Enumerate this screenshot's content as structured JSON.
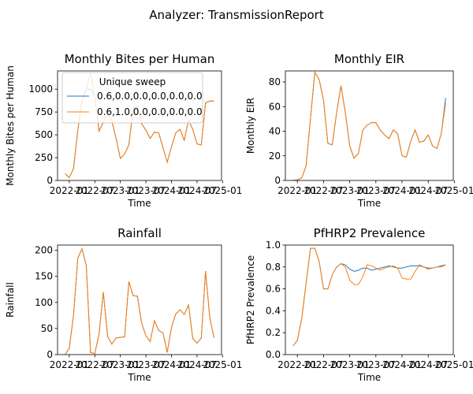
{
  "suptitle": "Analyzer: TransmissionReport",
  "colors": {
    "series1": "#1f77b4",
    "series2": "#ff7f0e",
    "axis": "#000000",
    "legend_border": "#cccccc"
  },
  "legend": {
    "title": "Unique sweep",
    "entries": [
      "0.6,0.0,0.0,0.0,0.0,0.0",
      "0.6,1.0,0.0,0.0,0.0,0.0"
    ],
    "placement": "upper-left of first subplot"
  },
  "x_tick_labels": [
    "2022-01",
    "2022-07",
    "2023-01",
    "2023-07",
    "2024-01",
    "2024-07",
    "2025-01"
  ],
  "chart_data": [
    {
      "type": "line",
      "title": "Monthly Bites per Human",
      "xlabel": "Time",
      "ylabel": "Monthly Bites per Human",
      "ylim": [
        0,
        1200
      ],
      "yticks": [
        0,
        250,
        500,
        750,
        1000
      ],
      "ytick_labels": [
        "0",
        "250",
        "500",
        "750",
        "1000"
      ],
      "x": [
        "2021-12",
        "2022-01",
        "2022-02",
        "2022-03",
        "2022-04",
        "2022-05",
        "2022-06",
        "2022-07",
        "2022-08",
        "2022-09",
        "2022-10",
        "2022-11",
        "2022-12",
        "2023-01",
        "2023-02",
        "2023-03",
        "2023-04",
        "2023-05",
        "2023-06",
        "2023-07",
        "2023-08",
        "2023-09",
        "2023-10",
        "2023-11",
        "2023-12",
        "2024-01",
        "2024-02",
        "2024-03",
        "2024-04",
        "2024-05",
        "2024-06",
        "2024-07",
        "2024-08",
        "2024-09",
        "2024-10",
        "2024-11"
      ],
      "series": [
        {
          "name": "0.6,0.0,0.0,0.0,0.0,0.0",
          "values": [
            75,
            30,
            130,
            550,
            870,
            1000,
            1000,
            920,
            540,
            640,
            760,
            650,
            460,
            240,
            290,
            390,
            790,
            820,
            620,
            550,
            460,
            530,
            520,
            360,
            200,
            370,
            520,
            560,
            440,
            660,
            560,
            400,
            390,
            850,
            870,
            870
          ]
        },
        {
          "name": "0.6,1.0,0.0,0.0,0.0,0.0",
          "values": [
            75,
            30,
            130,
            550,
            870,
            1000,
            1180,
            920,
            540,
            640,
            760,
            650,
            460,
            240,
            290,
            390,
            790,
            820,
            620,
            550,
            460,
            530,
            520,
            360,
            200,
            370,
            520,
            560,
            440,
            660,
            560,
            400,
            390,
            850,
            870,
            870
          ]
        }
      ]
    },
    {
      "type": "line",
      "title": "Monthly EIR",
      "xlabel": "Time",
      "ylabel": "Monthly EIR",
      "ylim": [
        0,
        89
      ],
      "yticks": [
        0,
        20,
        40,
        60,
        80
      ],
      "ytick_labels": [
        "0",
        "20",
        "40",
        "60",
        "80"
      ],
      "x": [
        "2021-12",
        "2022-01",
        "2022-02",
        "2022-03",
        "2022-04",
        "2022-05",
        "2022-06",
        "2022-07",
        "2022-08",
        "2022-09",
        "2022-10",
        "2022-11",
        "2022-12",
        "2023-01",
        "2023-02",
        "2023-03",
        "2023-04",
        "2023-05",
        "2023-06",
        "2023-07",
        "2023-08",
        "2023-09",
        "2023-10",
        "2023-11",
        "2023-12",
        "2024-01",
        "2024-02",
        "2024-03",
        "2024-04",
        "2024-05",
        "2024-06",
        "2024-07",
        "2024-08",
        "2024-09",
        "2024-10",
        "2024-11"
      ],
      "series": [
        {
          "name": "0.6,0.0,0.0,0.0,0.0,0.0",
          "values": [
            0,
            0.5,
            2,
            12,
            50,
            88,
            82,
            65,
            30,
            29,
            55,
            77,
            55,
            28,
            18,
            22,
            41,
            45,
            47,
            47,
            41,
            37,
            34,
            41,
            38,
            20,
            19,
            32,
            41,
            31,
            32,
            37,
            28,
            26,
            38,
            67
          ]
        },
        {
          "name": "0.6,1.0,0.0,0.0,0.0,0.0",
          "values": [
            0,
            0.5,
            2,
            12,
            50,
            88,
            82,
            65,
            30,
            29,
            55,
            77,
            55,
            28,
            18,
            22,
            41,
            45,
            47,
            47,
            41,
            37,
            34,
            41,
            38,
            20,
            19,
            32,
            41,
            31,
            32,
            37,
            28,
            26,
            38,
            63
          ]
        }
      ]
    },
    {
      "type": "line",
      "title": "Rainfall",
      "xlabel": "Time",
      "ylabel": "Rainfall",
      "ylim": [
        0,
        210
      ],
      "yticks": [
        0,
        50,
        100,
        150,
        200
      ],
      "ytick_labels": [
        "0",
        "50",
        "100",
        "150",
        "200"
      ],
      "x": [
        "2021-12",
        "2022-01",
        "2022-02",
        "2022-03",
        "2022-04",
        "2022-05",
        "2022-06",
        "2022-07",
        "2022-08",
        "2022-09",
        "2022-10",
        "2022-11",
        "2022-12",
        "2023-01",
        "2023-02",
        "2023-03",
        "2023-04",
        "2023-05",
        "2023-06",
        "2023-07",
        "2023-08",
        "2023-09",
        "2023-10",
        "2023-11",
        "2023-12",
        "2024-01",
        "2024-02",
        "2024-03",
        "2024-04",
        "2024-05",
        "2024-06",
        "2024-07",
        "2024-08",
        "2024-09",
        "2024-10",
        "2024-11"
      ],
      "series": [
        {
          "name": "0.6,0.0,0.0,0.0,0.0,0.0",
          "values": [
            0,
            12,
            75,
            185,
            203,
            170,
            4,
            2,
            40,
            120,
            35,
            20,
            32,
            33,
            34,
            140,
            113,
            112,
            60,
            36,
            25,
            65,
            46,
            42,
            4,
            52,
            78,
            86,
            77,
            95,
            31,
            22,
            32,
            160,
            70,
            32
          ]
        },
        {
          "name": "0.6,1.0,0.0,0.0,0.0,0.0",
          "values": [
            0,
            12,
            75,
            185,
            203,
            170,
            4,
            2,
            40,
            120,
            35,
            20,
            32,
            33,
            34,
            140,
            113,
            112,
            60,
            36,
            25,
            65,
            46,
            42,
            4,
            52,
            78,
            86,
            77,
            95,
            31,
            22,
            32,
            160,
            70,
            32
          ]
        }
      ]
    },
    {
      "type": "line",
      "title": "PfHRP2 Prevalence",
      "xlabel": "Time",
      "ylabel": "PfHRP2 Prevalence",
      "ylim": [
        0,
        1.0
      ],
      "yticks": [
        0,
        0.2,
        0.4,
        0.6,
        0.8,
        1.0
      ],
      "ytick_labels": [
        "0.0",
        "0.2",
        "0.4",
        "0.6",
        "0.8",
        "1.0"
      ],
      "x": [
        "2021-12",
        "2022-01",
        "2022-02",
        "2022-03",
        "2022-04",
        "2022-05",
        "2022-06",
        "2022-07",
        "2022-08",
        "2022-09",
        "2022-10",
        "2022-11",
        "2022-12",
        "2023-01",
        "2023-02",
        "2023-03",
        "2023-04",
        "2023-05",
        "2023-06",
        "2023-07",
        "2023-08",
        "2023-09",
        "2023-10",
        "2023-11",
        "2023-12",
        "2024-01",
        "2024-02",
        "2024-03",
        "2024-04",
        "2024-05",
        "2024-06",
        "2024-07",
        "2024-08",
        "2024-09",
        "2024-10",
        "2024-11"
      ],
      "series": [
        {
          "name": "0.6,0.0,0.0,0.0,0.0,0.0",
          "values": [
            0.08,
            0.13,
            0.33,
            0.65,
            0.97,
            0.97,
            0.85,
            0.6,
            0.6,
            0.73,
            0.8,
            0.83,
            0.82,
            0.78,
            0.76,
            0.77,
            0.79,
            0.79,
            0.77,
            0.78,
            0.79,
            0.8,
            0.81,
            0.8,
            0.79,
            0.79,
            0.8,
            0.81,
            0.81,
            0.81,
            0.8,
            0.79,
            0.79,
            0.8,
            0.81,
            0.82
          ]
        },
        {
          "name": "0.6,1.0,0.0,0.0,0.0,0.0",
          "values": [
            0.08,
            0.13,
            0.33,
            0.65,
            0.97,
            0.97,
            0.85,
            0.6,
            0.6,
            0.73,
            0.8,
            0.83,
            0.8,
            0.68,
            0.64,
            0.64,
            0.71,
            0.82,
            0.81,
            0.79,
            0.77,
            0.79,
            0.8,
            0.81,
            0.79,
            0.7,
            0.69,
            0.69,
            0.76,
            0.82,
            0.8,
            0.78,
            0.79,
            0.8,
            0.8,
            0.82
          ]
        }
      ]
    }
  ]
}
